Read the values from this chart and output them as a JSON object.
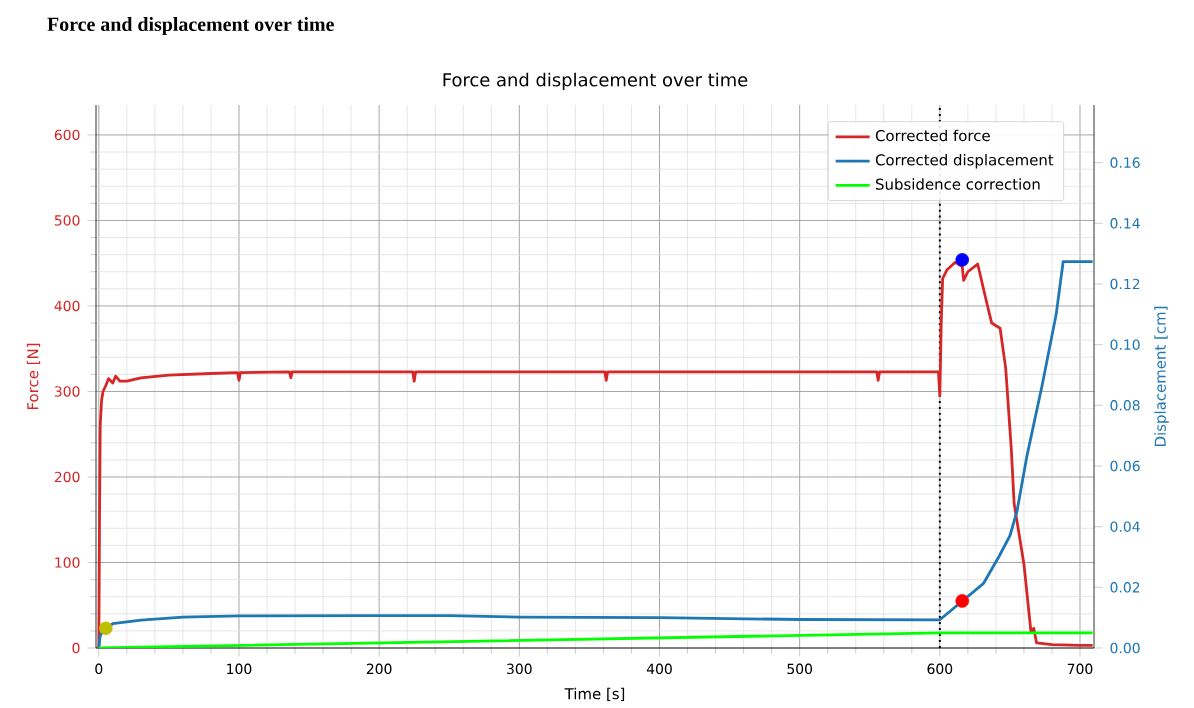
{
  "chart_data": {
    "type": "line",
    "title": "Force and displacement over time",
    "annotations": [
      "Force and displacement over time"
    ],
    "xlabel": "Time [s]",
    "ylabel": "Force [N]",
    "y2label": "Displacement [cm]",
    "xlim": [
      -2,
      710
    ],
    "ylim": [
      0,
      635
    ],
    "y2lim": [
      0,
      0.179
    ],
    "xticks": [
      0,
      100,
      200,
      300,
      400,
      500,
      600,
      700
    ],
    "yticks": [
      0,
      100,
      200,
      300,
      400,
      500,
      600
    ],
    "y2ticks": [
      {
        "value": 0,
        "label": "0.00"
      },
      {
        "value": 0.02,
        "label": "0.02"
      },
      {
        "value": 0.04,
        "label": "0.04"
      },
      {
        "value": 0.06,
        "label": "0.06"
      },
      {
        "value": 0.08,
        "label": "0.08"
      },
      {
        "value": 0.1,
        "label": "0.10"
      },
      {
        "value": 0.12,
        "label": "0.12"
      },
      {
        "value": 0.14,
        "label": "0.14"
      },
      {
        "value": 0.16,
        "label": "0.16"
      }
    ],
    "grid": true,
    "legend": "top right",
    "ref_lines": [
      {
        "axis": "x",
        "value": 600,
        "color": "#000000",
        "line_style": "dotted"
      }
    ],
    "series": [
      {
        "name": "Corrected force",
        "color": "#d62728",
        "type": "line",
        "x": [
          0,
          0.5,
          1,
          2,
          3,
          5,
          7,
          10,
          12,
          15,
          20,
          30,
          50,
          80,
          99,
          100,
          101,
          136,
          137,
          138,
          200,
          224,
          225,
          226,
          300,
          361,
          362,
          363,
          450,
          555,
          556,
          557,
          599,
          600,
          601,
          602,
          605,
          611,
          616,
          617,
          620,
          627,
          633,
          637,
          643,
          647,
          651,
          653,
          660,
          665,
          667,
          669,
          680,
          700,
          709
        ],
        "values": [
          0,
          150,
          260,
          290,
          300,
          307,
          315,
          310,
          318,
          312,
          312,
          316,
          319,
          321,
          322,
          313,
          322,
          323,
          316,
          323,
          323,
          323,
          312,
          323,
          323,
          323,
          313,
          323,
          323,
          323,
          313,
          323,
          323,
          295,
          380,
          432,
          442,
          451,
          446,
          430,
          440,
          449,
          407,
          380,
          374,
          327,
          232,
          169,
          98,
          19,
          23,
          6,
          4,
          3,
          3
        ]
      },
      {
        "name": "Corrected displacement",
        "color": "#1f77b4",
        "type": "line",
        "axis": "y2",
        "x": [
          0,
          1,
          3,
          10,
          30,
          60,
          100,
          200,
          250,
          300,
          400,
          500,
          600,
          631,
          642,
          650,
          655,
          662,
          673,
          683,
          688,
          709
        ],
        "values": [
          0,
          0.004,
          0.0058,
          0.008,
          0.0092,
          0.0102,
          0.0106,
          0.0107,
          0.0107,
          0.0102,
          0.01,
          0.0094,
          0.0093,
          0.0212,
          0.03,
          0.037,
          0.045,
          0.063,
          0.0866,
          0.11,
          0.1274,
          0.1274
        ]
      },
      {
        "name": "Subsidence correction",
        "color": "#00ff00",
        "type": "line",
        "axis": "y2",
        "x": [
          0,
          600,
          709
        ],
        "values": [
          0,
          0.005,
          0.005
        ]
      },
      {
        "color": "#0000ff",
        "type": "scatter",
        "marker": "circle",
        "x": [
          616
        ],
        "values": [
          454
        ]
      },
      {
        "color": "#ff0000",
        "type": "scatter",
        "marker": "circle",
        "axis": "y2",
        "x": [
          616
        ],
        "values": [
          0.0155
        ]
      },
      {
        "color": "#bfbf00",
        "type": "scatter",
        "marker": "circle",
        "axis": "y2",
        "x": [
          5
        ],
        "values": [
          0.0065
        ]
      }
    ]
  }
}
